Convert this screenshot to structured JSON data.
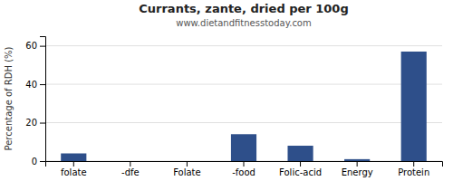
{
  "chart_data": {
    "type": "bar",
    "title": "Currants, zante, dried per 100g",
    "subtitle": "www.dietandfitnesstoday.com",
    "categories": [
      "folate",
      "-dfe",
      "Folate",
      "-food",
      "Folic-acid",
      "Energy",
      "Protein"
    ],
    "values": [
      4.0,
      0.0,
      0.0,
      14.0,
      8.0,
      1.0,
      57.0
    ],
    "color": "#2e4f8a",
    "ylabel": "Percentage of RDH (%)",
    "ylim": [
      0,
      65
    ],
    "yticks": [
      0,
      20,
      40,
      60
    ],
    "grid": true
  }
}
